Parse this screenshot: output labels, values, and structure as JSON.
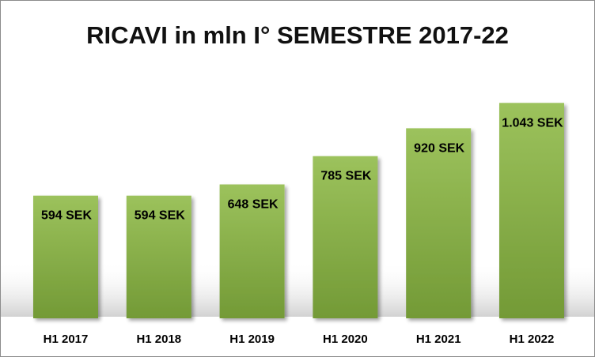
{
  "chart_data": {
    "type": "bar",
    "title": "RICAVI in mln I° SEMESTRE 2017-22",
    "categories": [
      "H1 2017",
      "H1 2018",
      "H1 2019",
      "H1 2020",
      "H1 2021",
      "H1 2022"
    ],
    "values": [
      594,
      594,
      648,
      785,
      920,
      1043
    ],
    "value_labels": [
      "594 SEK",
      "594 SEK",
      "648 SEK",
      "785 SEK",
      "920 SEK",
      "1.043 SEK"
    ],
    "xlabel": "",
    "ylabel": "",
    "ylim": [
      0,
      1100
    ],
    "grid": false,
    "legend": "none"
  },
  "colors": {
    "bar_top": "#9cc25c",
    "bar_bottom": "#739a36",
    "background_gradient": "#d0d0d0",
    "frame_border": "#8c8c8c"
  }
}
